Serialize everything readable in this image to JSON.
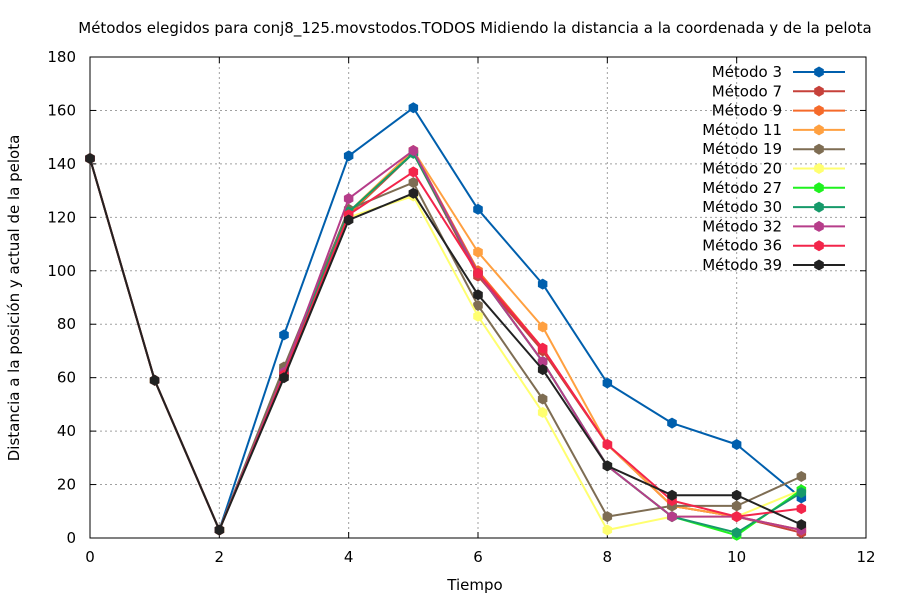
{
  "chart_data": {
    "type": "line",
    "title": "Métodos elegidos para conj8_125.movstodos.TODOS Midiendo la distancia a la coordenada y de la pelota",
    "xlabel": "Tiempo",
    "ylabel": "Distancia a la posición y actual de la pelota",
    "xlim": [
      0,
      12
    ],
    "ylim": [
      0,
      180
    ],
    "xticks": [
      0,
      2,
      4,
      6,
      8,
      10,
      12
    ],
    "yticks": [
      0,
      20,
      40,
      60,
      80,
      100,
      120,
      140,
      160,
      180
    ],
    "grid": true,
    "legend_position": "top-right",
    "x": [
      0,
      1,
      2,
      3,
      4,
      5,
      6,
      7,
      8,
      9,
      10,
      11
    ],
    "series": [
      {
        "name": "Método 3",
        "color": "#005fad",
        "values": [
          142,
          59,
          3,
          76,
          143,
          161,
          123,
          95,
          58,
          43,
          35,
          15
        ]
      },
      {
        "name": "Método 7",
        "color": "#c6413a",
        "values": [
          142,
          59,
          3,
          63,
          121,
          144,
          98,
          70,
          35,
          12,
          8,
          2
        ]
      },
      {
        "name": "Método 9",
        "color": "#f56a2a",
        "values": [
          142,
          59,
          3,
          62,
          121,
          145,
          100,
          71,
          35,
          12,
          8,
          3
        ]
      },
      {
        "name": "Método 11",
        "color": "#ffa040",
        "values": [
          142,
          59,
          3,
          62,
          122,
          145,
          107,
          79,
          35,
          12,
          8,
          3
        ]
      },
      {
        "name": "Método 19",
        "color": "#7e6d53",
        "values": [
          142,
          59,
          3,
          64,
          123,
          133,
          87,
          52,
          8,
          12,
          12,
          23
        ]
      },
      {
        "name": "Método 20",
        "color": "#ffff70",
        "values": [
          142,
          59,
          3,
          61,
          120,
          128,
          83,
          47,
          3,
          8,
          8,
          18
        ]
      },
      {
        "name": "Método 27",
        "color": "#1ff21f",
        "values": [
          142,
          59,
          3,
          62,
          122,
          144,
          99,
          66,
          27,
          8,
          1,
          18
        ]
      },
      {
        "name": "Método 30",
        "color": "#169a6a",
        "values": [
          142,
          59,
          3,
          62,
          122,
          144,
          99,
          66,
          27,
          8,
          2,
          17
        ]
      },
      {
        "name": "Método 32",
        "color": "#b63d8a",
        "values": [
          142,
          59,
          3,
          62,
          127,
          145,
          99,
          66,
          27,
          8,
          8,
          3
        ]
      },
      {
        "name": "Método 36",
        "color": "#f3254a",
        "values": [
          142,
          59,
          3,
          61,
          121,
          137,
          99,
          71,
          35,
          14,
          8,
          11
        ]
      },
      {
        "name": "Método 39",
        "color": "#222222",
        "values": [
          142,
          59,
          3,
          60,
          119,
          129,
          91,
          63,
          27,
          16,
          16,
          5
        ]
      }
    ]
  }
}
